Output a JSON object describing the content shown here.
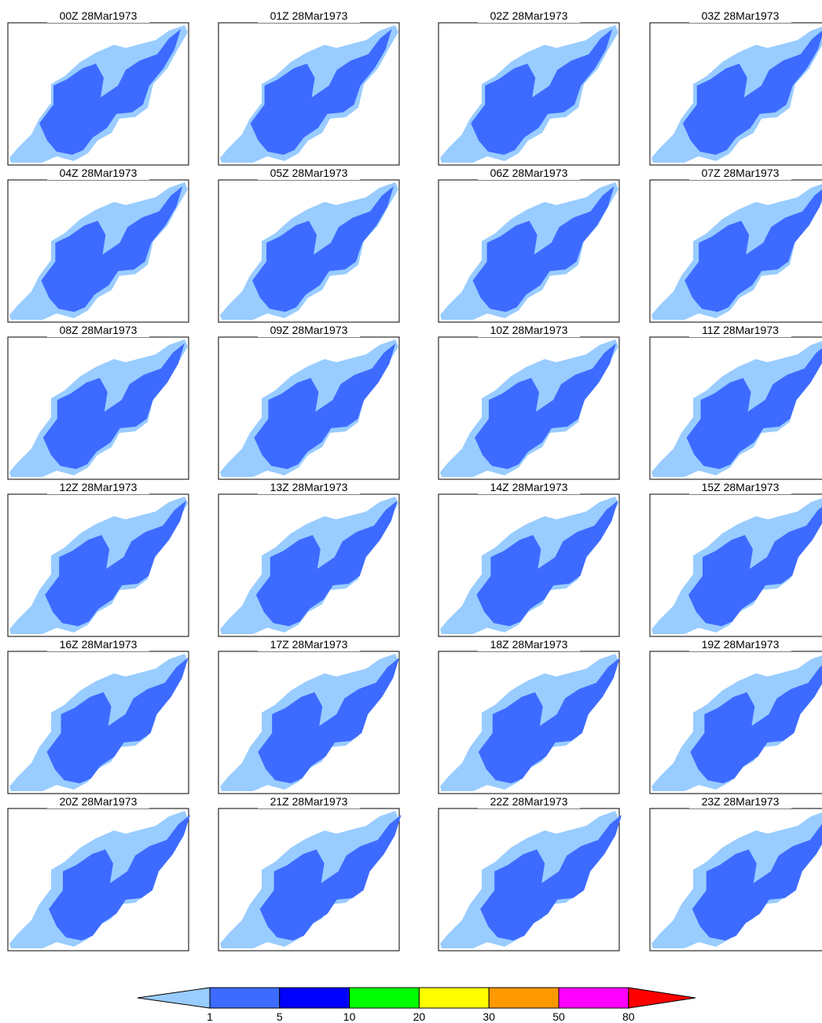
{
  "panels": [
    {
      "title": "00Z 28Mar1973"
    },
    {
      "title": "01Z 28Mar1973"
    },
    {
      "title": "02Z 28Mar1973"
    },
    {
      "title": "03Z 28Mar1973"
    },
    {
      "title": "04Z 28Mar1973"
    },
    {
      "title": "05Z 28Mar1973"
    },
    {
      "title": "06Z 28Mar1973"
    },
    {
      "title": "07Z 28Mar1973"
    },
    {
      "title": "08Z 28Mar1973"
    },
    {
      "title": "09Z 28Mar1973"
    },
    {
      "title": "10Z 28Mar1973"
    },
    {
      "title": "11Z 28Mar1973"
    },
    {
      "title": "12Z 28Mar1973"
    },
    {
      "title": "13Z 28Mar1973"
    },
    {
      "title": "14Z 28Mar1973"
    },
    {
      "title": "15Z 28Mar1973"
    },
    {
      "title": "16Z 28Mar1973"
    },
    {
      "title": "17Z 28Mar1973"
    },
    {
      "title": "18Z 28Mar1973"
    },
    {
      "title": "19Z 28Mar1973"
    },
    {
      "title": "20Z 28Mar1973"
    },
    {
      "title": "21Z 28Mar1973"
    },
    {
      "title": "22Z 28Mar1973"
    },
    {
      "title": "23Z 28Mar1973"
    }
  ],
  "colorbar": {
    "colors": [
      "#99ccff",
      "#3d6bff",
      "#0000ff",
      "#00ff00",
      "#ffff00",
      "#ff9900",
      "#ff00ff",
      "#ff0000"
    ],
    "labels": [
      1,
      5,
      10,
      20,
      30,
      50,
      80
    ]
  }
}
